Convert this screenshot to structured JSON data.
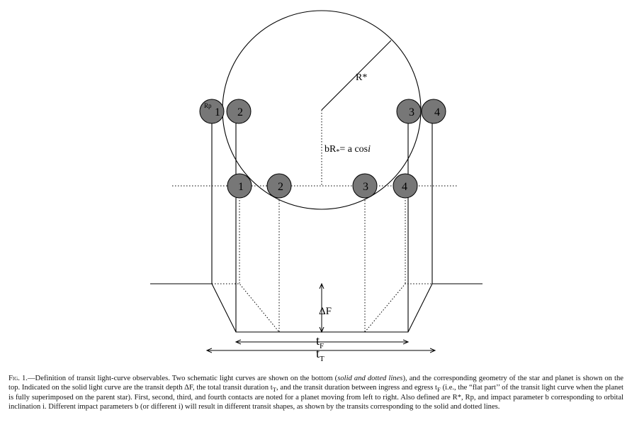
{
  "figure": {
    "labels": {
      "star_radius": "R*",
      "planet_radius": "Rp",
      "impact_eq_left": "bR",
      "impact_eq_sub": "*",
      "impact_eq_mid": "= a cos",
      "impact_eq_i": "i",
      "depth": "ΔF",
      "t": "t",
      "tF_sub": "F",
      "tT_sub": "T"
    },
    "top_contacts": [
      "1",
      "2",
      "3",
      "4"
    ],
    "bottom_contacts": [
      "1",
      "2",
      "3",
      "4"
    ],
    "planet_fill": "#777777"
  },
  "caption": {
    "fig_label": "Fig. 1.",
    "part1": "—Definition of transit light-curve observables. Two schematic light curves are shown on the bottom (",
    "em1": "solid and dotted lines",
    "part2": "), and the corresponding geometry of the star and planet is shown on the top. Indicated on the solid light curve are the transit depth ΔF, the total transit duration t",
    "sub_T": "T",
    "part3": ", and the transit duration between ingress and egress t",
    "sub_F": "F",
    "part4": " (i.e., the “flat part’’ of the transit light curve when the planet is fully superimposed on the parent star). First, second, third, and fourth contacts are noted for a planet moving from left to right. Also defined are R*, Rp, and impact parameter b corresponding to orbital inclination i. Different impact parameters b (or different i) will result in different transit shapes, as shown by the transits corresponding to the solid and dotted lines."
  }
}
